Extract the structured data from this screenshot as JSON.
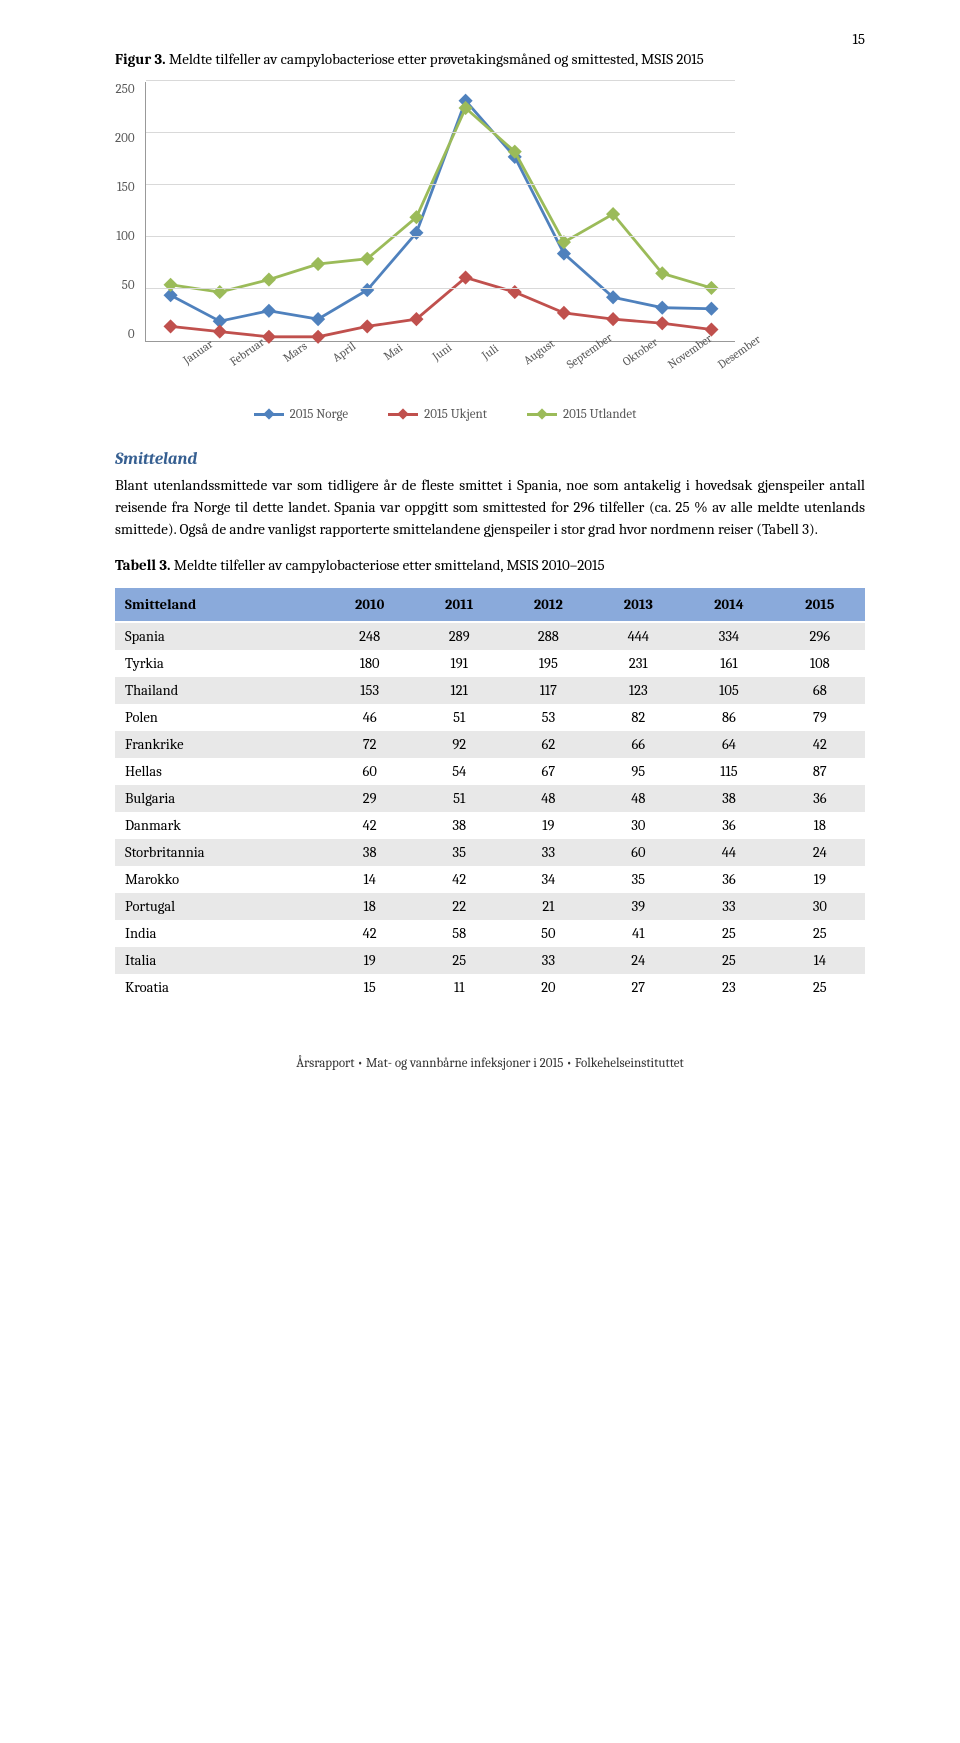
{
  "page_number": "15",
  "figure": {
    "label": "Figur 3.",
    "caption": "Meldte tilfeller av campylobacteriose etter prøvetakingsmåned og smittested, MSIS 2015",
    "type": "line",
    "x_categories": [
      "Januar",
      "Februar",
      "Mars",
      "April",
      "Mai",
      "Juni",
      "Juli",
      "August",
      "September",
      "Oktober",
      "November",
      "Desember"
    ],
    "y_ticks": [
      0,
      50,
      100,
      150,
      200,
      250
    ],
    "ylim": [
      0,
      250
    ],
    "series": [
      {
        "name": "2015 Norge",
        "color": "#4f81bd",
        "values": [
          45,
          20,
          30,
          22,
          50,
          105,
          232,
          178,
          85,
          43,
          33,
          32
        ]
      },
      {
        "name": "2015 Ukjent",
        "color": "#c0504d",
        "values": [
          15,
          10,
          5,
          5,
          15,
          22,
          62,
          48,
          28,
          22,
          18,
          12
        ]
      },
      {
        "name": "2015 Utlandet",
        "color": "#9bbb59",
        "values": [
          55,
          48,
          60,
          75,
          80,
          120,
          225,
          183,
          96,
          123,
          66,
          52
        ]
      }
    ],
    "marker_size": 5,
    "line_width": 2.8,
    "grid_color": "#d9d9d9",
    "axis_color": "#999999",
    "tick_label_color": "#595959",
    "tick_fontsize": 13,
    "xlabel_fontsize": 12
  },
  "section_heading": "Smitteland",
  "body_paragraph": "Blant utenlandssmittede var som tidligere år de fleste smittet i Spania, noe som antakelig i hovedsak gjenspeiler antall reisende fra Norge til dette landet. Spania var oppgitt som smittested for 296 tilfeller (ca. 25 % av alle meldte utenlands smittede). Også de andre vanligst rapporterte smittelandene gjenspeiler i stor grad hvor nordmenn reiser (Tabell 3).",
  "table": {
    "label": "Tabell 3.",
    "caption": "Meldte tilfeller av campylobacteriose etter smitteland, MSIS 2010–2015",
    "columns": [
      "Smitteland",
      "2010",
      "2011",
      "2012",
      "2013",
      "2014",
      "2015"
    ],
    "header_bg": "#8aaadb",
    "row_odd_bg": "#e8e8e8",
    "row_even_bg": "#ffffff",
    "rows": [
      [
        "Spania",
        "248",
        "289",
        "288",
        "444",
        "334",
        "296"
      ],
      [
        "Tyrkia",
        "180",
        "191",
        "195",
        "231",
        "161",
        "108"
      ],
      [
        "Thailand",
        "153",
        "121",
        "117",
        "123",
        "105",
        "68"
      ],
      [
        "Polen",
        "46",
        "51",
        "53",
        "82",
        "86",
        "79"
      ],
      [
        "Frankrike",
        "72",
        "92",
        "62",
        "66",
        "64",
        "42"
      ],
      [
        "Hellas",
        "60",
        "54",
        "67",
        "95",
        "115",
        "87"
      ],
      [
        "Bulgaria",
        "29",
        "51",
        "48",
        "48",
        "38",
        "36"
      ],
      [
        "Danmark",
        "42",
        "38",
        "19",
        "30",
        "36",
        "18"
      ],
      [
        "Storbritannia",
        "38",
        "35",
        "33",
        "60",
        "44",
        "24"
      ],
      [
        "Marokko",
        "14",
        "42",
        "34",
        "35",
        "36",
        "19"
      ],
      [
        "Portugal",
        "18",
        "22",
        "21",
        "39",
        "33",
        "30"
      ],
      [
        "India",
        "42",
        "58",
        "50",
        "41",
        "25",
        "25"
      ],
      [
        "Italia",
        "19",
        "25",
        "33",
        "24",
        "25",
        "14"
      ],
      [
        "Kroatia",
        "15",
        "11",
        "20",
        "27",
        "23",
        "25"
      ]
    ]
  },
  "footer": "Årsrapport • Mat- og vannbårne infeksjoner i 2015 • Folkehelseinstituttet"
}
